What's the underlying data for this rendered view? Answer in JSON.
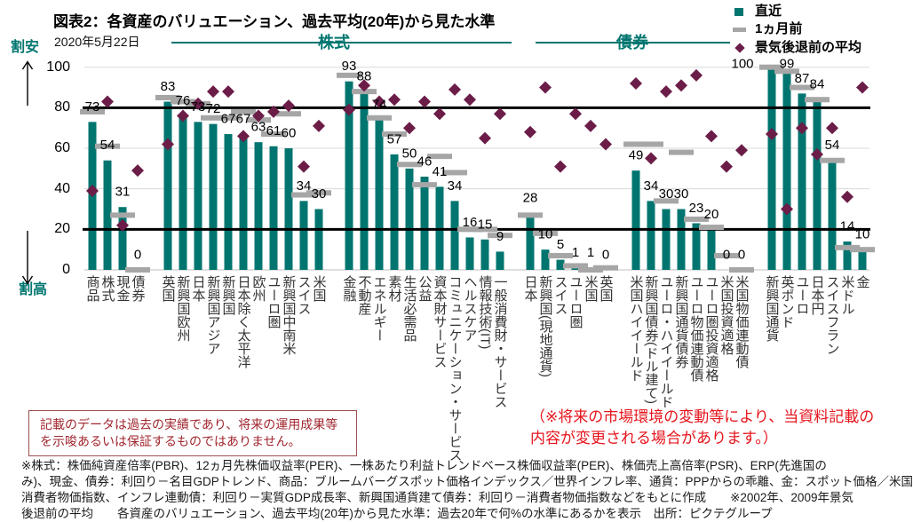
{
  "chart_data": {
    "type": "bar",
    "title": "図表2：各資産のバリュエーション、過去平均(20年)から見た水準",
    "subtitle": "2020年5月22日",
    "xlabel": "",
    "ylabel": "",
    "ylim": [
      0,
      100
    ],
    "yticks": [
      0,
      20,
      40,
      60,
      80,
      100
    ],
    "reference_lines": [
      80,
      20
    ],
    "grid": true,
    "legend_position": "top-right",
    "y_annotations": {
      "top": "割安",
      "bottom": "割高"
    },
    "sections": [
      {
        "label": "株式"
      },
      {
        "label": "債券"
      }
    ],
    "legend": [
      {
        "key": "latest",
        "label": "直近",
        "marker": "square"
      },
      {
        "key": "one_month_ago",
        "label": "1ヵ月前",
        "marker": "dash"
      },
      {
        "key": "pre_recession_avg",
        "label": "景気後退前の平均",
        "marker": "diamond"
      }
    ],
    "colors": {
      "latest": "#00756f",
      "one_month_ago": "#a6a6a6",
      "pre_recession_avg": "#6b1d48",
      "reference_line": "#000000",
      "section": "#00756f"
    },
    "groups": [
      {
        "categories": [
          "商品",
          "株式",
          "現金",
          "債券"
        ],
        "latest": [
          73,
          54,
          31,
          0
        ],
        "one_month_ago": [
          78,
          61,
          27,
          0
        ],
        "pre_recession_avg": [
          39,
          83,
          22,
          49
        ]
      },
      {
        "categories": [
          "英国",
          "新興国欧州",
          "日本",
          "新興国アジア",
          "新興国",
          "日本除く太平洋",
          "欧州",
          "ユーロ圏",
          "新興国中南米",
          "スイス",
          "米国"
        ],
        "latest": [
          83,
          76,
          73,
          72,
          67,
          67,
          63,
          61,
          60,
          34,
          30
        ],
        "one_month_ago": [
          85,
          83,
          82,
          75,
          75,
          78,
          74,
          67,
          77,
          37,
          38
        ],
        "pre_recession_avg": [
          62,
          76,
          82,
          88,
          88,
          66,
          76,
          78,
          81,
          51,
          71
        ]
      },
      {
        "categories": [
          "金融",
          "不動産",
          "エネルギー",
          "素材",
          "生活必需品",
          "公益",
          "資本財サービス",
          "コミュニケーション・サービス",
          "ヘルスケア",
          "情報技術(IT)",
          "一般消費財・サービス"
        ],
        "latest": [
          93,
          88,
          74,
          57,
          50,
          46,
          41,
          34,
          16,
          15,
          9
        ],
        "one_month_ago": [
          96,
          88,
          75,
          67,
          52,
          42,
          56,
          48,
          20,
          20,
          17
        ],
        "pre_recession_avg": [
          79,
          91,
          83,
          84,
          70,
          83,
          77,
          89,
          84,
          65,
          77
        ]
      },
      {
        "categories": [
          "日本",
          "新興国(現地通貨)",
          "スイス",
          "ユーロ圏",
          "米国",
          "英国"
        ],
        "latest": [
          28,
          10,
          5,
          1,
          1,
          0
        ],
        "one_month_ago": [
          27,
          18,
          7,
          2,
          0,
          1
        ],
        "pre_recession_avg": [
          68,
          90,
          51,
          77,
          71,
          62
        ]
      },
      {
        "categories": [
          "米国ハイイールド",
          "新興国債券(ドル建て)",
          "ユーロ・ハイイールド",
          "新興国通貨債券",
          "ユーロ物価連動債",
          "ユーロ圏投資適格",
          "米国投資適格",
          "米国物価連動債"
        ],
        "latest": [
          49,
          34,
          30,
          30,
          23,
          20,
          0,
          0
        ],
        "one_month_ago": [
          62,
          62,
          34,
          58,
          25,
          21,
          7,
          0
        ],
        "pre_recession_avg": [
          92,
          55,
          88,
          91,
          96,
          66,
          51,
          59
        ]
      },
      {
        "categories": [
          "新興国通貨",
          "英ポンド",
          "ユーロ",
          "日本円",
          "スイスフラン",
          "米ドル",
          "金"
        ],
        "latest": [
          100,
          99,
          87,
          84,
          54,
          14,
          10
        ],
        "one_month_ago": [
          100,
          98,
          90,
          84,
          54,
          11,
          10
        ],
        "pre_recession_avg": [
          67,
          30,
          70,
          57,
          70,
          36,
          90
        ]
      }
    ]
  },
  "disclaimer": {
    "lines": [
      "記載のデータは過去の実績であり、将来の運用成果等",
      "を示唆あるいは保証するものではありません。"
    ]
  },
  "notice": {
    "lines": [
      "（※将来の市場環境の変動等により、当資料記載の",
      "内容が変更される場合があります。）"
    ]
  },
  "footnotes": [
    "※株式：株価純資産倍率(PBR)、12ヵ月先株価収益率(PER)、一株あたり利益トレンドベース株価収益率(PER)、株価売上高倍率(PSR)、ERP(先進国の",
    "み)、現金、債券：利回り－名目GDPトレンド、商品：ブルームバーグスポット価格インデックス／世界インフレ率、通貨：PPPからの乖離、金：スポット価格／米国",
    "消費者物価指数、インフレ連動債：利回り－実質GDP成長率、新興国通貨建て債券：利回り－消費者物価指数などをもとに作成　　※2002年、2009年景気",
    "後退前の平均　　各資産のバリュエーション、過去平均(20年)から見た水準：過去20年で何%の水準にあるかを表示　出所：ピクテグループ"
  ]
}
